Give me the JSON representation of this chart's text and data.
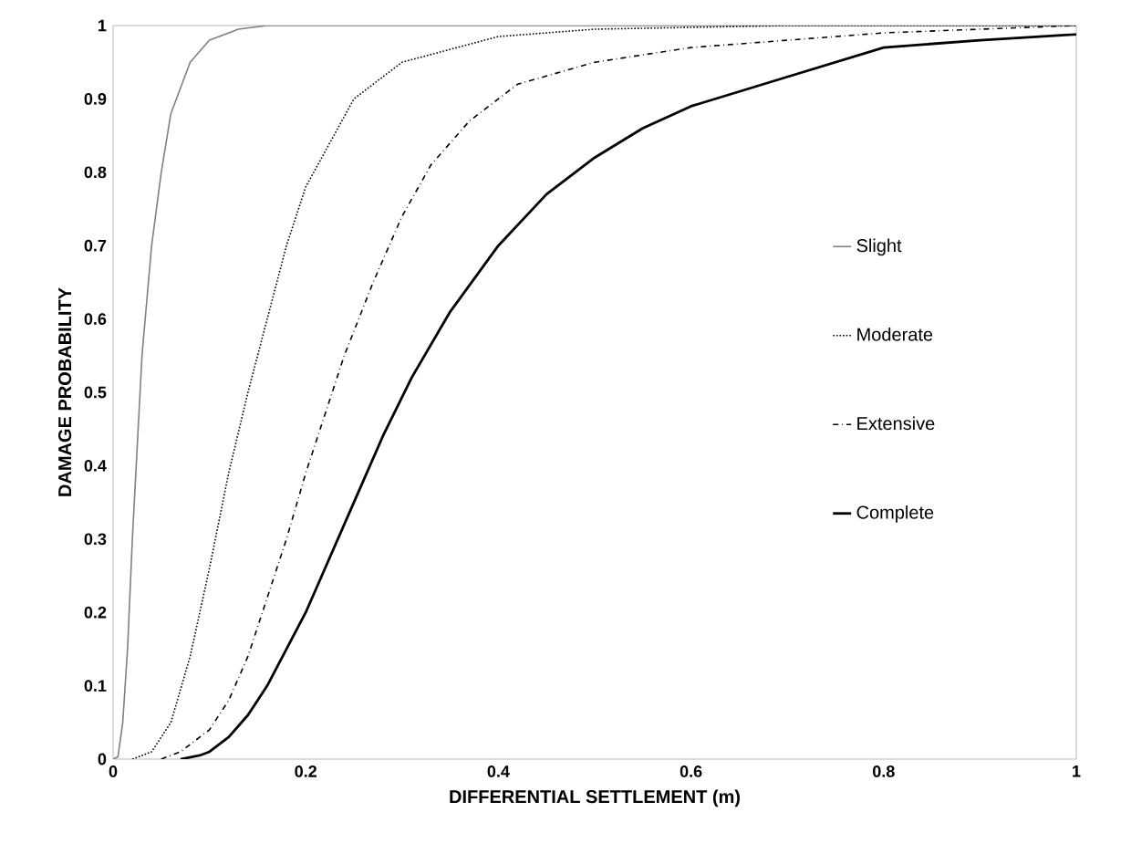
{
  "chart_data": {
    "type": "line",
    "xlabel": "DIFFERENTIAL SETTLEMENT (m)",
    "ylabel": "DAMAGE PROBABILITY",
    "xlim": [
      0,
      1
    ],
    "ylim": [
      0,
      1
    ],
    "xticks": [
      0,
      0.2,
      0.4,
      0.6,
      0.8,
      1
    ],
    "yticks": [
      0,
      0.1,
      0.2,
      0.3,
      0.4,
      0.5,
      0.6,
      0.7,
      0.8,
      0.9,
      1
    ],
    "grid": false,
    "legend": "right",
    "marker": "none",
    "series": [
      {
        "name": "Slight",
        "color": "#808080",
        "line_style": "solid",
        "x": [
          0,
          0.005,
          0.01,
          0.015,
          0.02,
          0.03,
          0.04,
          0.05,
          0.06,
          0.08,
          0.1,
          0.13,
          0.16,
          1
        ],
        "values": [
          0,
          0.003,
          0.05,
          0.15,
          0.3,
          0.55,
          0.7,
          0.8,
          0.88,
          0.95,
          0.98,
          0.995,
          1,
          1
        ]
      },
      {
        "name": "Moderate",
        "color": "#000000",
        "line_style": "dotted",
        "x": [
          0.02,
          0.04,
          0.06,
          0.08,
          0.1,
          0.12,
          0.14,
          0.16,
          0.18,
          0.2,
          0.25,
          0.3,
          0.4,
          0.5,
          0.7,
          1
        ],
        "values": [
          0,
          0.01,
          0.05,
          0.14,
          0.26,
          0.39,
          0.5,
          0.6,
          0.7,
          0.78,
          0.9,
          0.95,
          0.985,
          0.995,
          1,
          1
        ]
      },
      {
        "name": "Extensive",
        "color": "#000000",
        "line_style": "dashdot",
        "x": [
          0.05,
          0.07,
          0.1,
          0.12,
          0.14,
          0.16,
          0.18,
          0.2,
          0.22,
          0.24,
          0.27,
          0.3,
          0.33,
          0.37,
          0.42,
          0.5,
          0.6,
          0.8,
          1
        ],
        "values": [
          0,
          0.01,
          0.04,
          0.08,
          0.14,
          0.22,
          0.3,
          0.39,
          0.47,
          0.55,
          0.65,
          0.74,
          0.81,
          0.87,
          0.92,
          0.95,
          0.97,
          0.99,
          1
        ]
      },
      {
        "name": "Complete",
        "color": "#000000",
        "line_style": "solid",
        "x": [
          0.07,
          0.09,
          0.1,
          0.12,
          0.14,
          0.16,
          0.18,
          0.2,
          0.22,
          0.25,
          0.28,
          0.31,
          0.35,
          0.4,
          0.45,
          0.5,
          0.55,
          0.6,
          0.7,
          0.8,
          0.9,
          1
        ],
        "values": [
          0,
          0.005,
          0.01,
          0.03,
          0.06,
          0.1,
          0.15,
          0.2,
          0.26,
          0.35,
          0.44,
          0.52,
          0.61,
          0.7,
          0.77,
          0.82,
          0.86,
          0.89,
          0.93,
          0.97,
          0.98,
          0.988
        ]
      }
    ]
  }
}
